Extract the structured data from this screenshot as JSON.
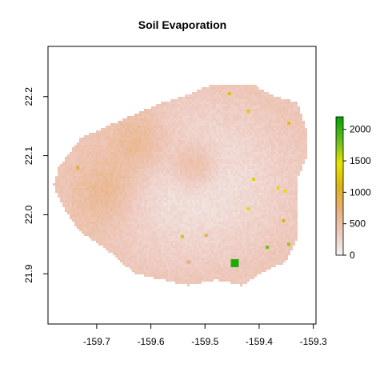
{
  "chart_data": {
    "type": "heatmap",
    "title": "Soil Evaporation",
    "xlabel": "",
    "ylabel": "",
    "xlim": [
      -159.79,
      -159.295
    ],
    "ylim": [
      21.815,
      22.285
    ],
    "x_ticks": [
      -159.7,
      -159.6,
      -159.5,
      -159.4,
      -159.3
    ],
    "x_tick_labels": [
      "-159.7",
      "-159.6",
      "-159.5",
      "-159.4",
      "-159.3"
    ],
    "y_ticks": [
      21.9,
      22.0,
      22.1,
      22.2
    ],
    "y_tick_labels": [
      "21.9",
      "22.0",
      "22.1",
      "22.2"
    ],
    "legend": {
      "placement": "right",
      "min": 0,
      "max": 2200,
      "ticks": [
        0,
        500,
        1000,
        1500,
        2000
      ],
      "tick_labels": [
        "0",
        "500",
        "1000",
        "1500",
        "2000"
      ],
      "colors": [
        "#f2f2f2",
        "#eec9bf",
        "#e8b07a",
        "#dcb218",
        "#e6e600",
        "#66bb22",
        "#00a600"
      ]
    },
    "island_outline_lonlat": [
      [
        -159.78,
        22.05
      ],
      [
        -159.77,
        22.08
      ],
      [
        -159.73,
        22.13
      ],
      [
        -159.68,
        22.15
      ],
      [
        -159.63,
        22.17
      ],
      [
        -159.58,
        22.19
      ],
      [
        -159.54,
        22.2
      ],
      [
        -159.49,
        22.22
      ],
      [
        -159.45,
        22.22
      ],
      [
        -159.41,
        22.22
      ],
      [
        -159.37,
        22.2
      ],
      [
        -159.33,
        22.19
      ],
      [
        -159.31,
        22.14
      ],
      [
        -159.31,
        22.1
      ],
      [
        -159.33,
        22.06
      ],
      [
        -159.33,
        22.01
      ],
      [
        -159.33,
        21.96
      ],
      [
        -159.35,
        21.92
      ],
      [
        -159.4,
        21.9
      ],
      [
        -159.43,
        21.88
      ],
      [
        -159.48,
        21.89
      ],
      [
        -159.53,
        21.88
      ],
      [
        -159.58,
        21.89
      ],
      [
        -159.63,
        21.9
      ],
      [
        -159.68,
        21.94
      ],
      [
        -159.73,
        21.97
      ],
      [
        -159.76,
        22.01
      ]
    ],
    "high_value_cells_lonlat": [
      {
        "lon": -159.445,
        "lat": 21.918,
        "value": 2100
      },
      {
        "lon": -159.385,
        "lat": 21.945,
        "value": 1800
      },
      {
        "lon": -159.345,
        "lat": 21.95,
        "value": 1700
      },
      {
        "lon": -159.542,
        "lat": 21.963,
        "value": 1600
      },
      {
        "lon": -159.42,
        "lat": 22.01,
        "value": 1500
      },
      {
        "lon": -159.352,
        "lat": 22.04,
        "value": 1400
      },
      {
        "lon": -159.365,
        "lat": 22.045,
        "value": 1500
      },
      {
        "lon": -159.41,
        "lat": 22.06,
        "value": 1300
      },
      {
        "lon": -159.345,
        "lat": 22.155,
        "value": 1200
      },
      {
        "lon": -159.42,
        "lat": 22.175,
        "value": 1300
      },
      {
        "lon": -159.455,
        "lat": 22.205,
        "value": 1200
      },
      {
        "lon": -159.735,
        "lat": 22.08,
        "value": 1000
      },
      {
        "lon": -159.355,
        "lat": 21.99,
        "value": 1100
      },
      {
        "lon": -159.498,
        "lat": 21.965,
        "value": 900
      },
      {
        "lon": -159.53,
        "lat": 21.92,
        "value": 800
      }
    ],
    "gradient_features": [
      {
        "lon": -159.52,
        "lat": 22.08,
        "value": 650,
        "spread": 0.03
      },
      {
        "lon": -159.62,
        "lat": 22.12,
        "value": 550,
        "spread": 0.04
      },
      {
        "lon": -159.68,
        "lat": 22.04,
        "value": 500,
        "spread": 0.04
      }
    ]
  }
}
